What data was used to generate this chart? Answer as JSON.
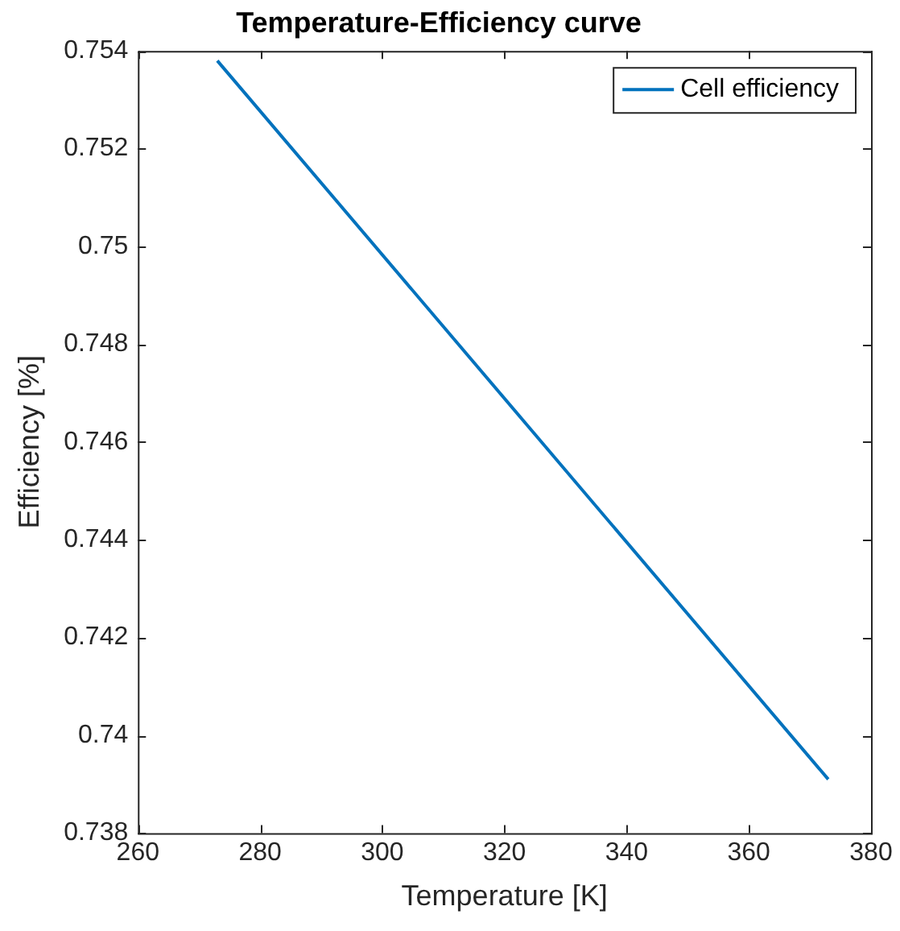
{
  "chart_data": {
    "type": "line",
    "title": "Temperature-Efficiency curve",
    "xlabel": "Temperature [K]",
    "ylabel": "Efficiency [%]",
    "x": [
      273,
      323,
      373
    ],
    "series": [
      {
        "name": "Cell efficiency",
        "color": "#0072bd",
        "values": [
          0.7538,
          0.74645,
          0.7391
        ]
      }
    ],
    "xlim": [
      260,
      380
    ],
    "xticks": [
      260,
      280,
      300,
      320,
      340,
      360,
      380
    ],
    "ylim": [
      0.738,
      0.754
    ],
    "yticks": [
      0.738,
      0.74,
      0.742,
      0.744,
      0.746,
      0.748,
      0.75,
      0.752,
      0.754
    ],
    "grid": false,
    "legend": "top right",
    "marker": "none",
    "line_style": "solid"
  }
}
